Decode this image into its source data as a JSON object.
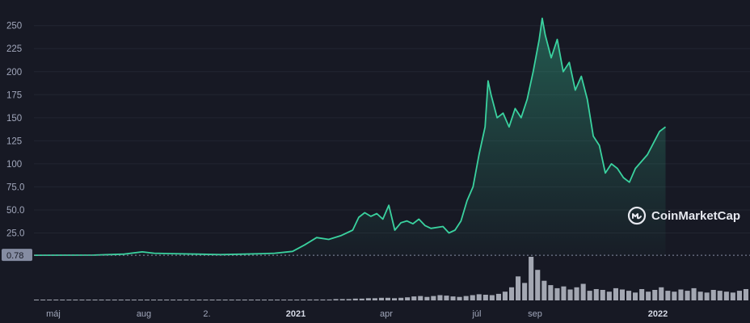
{
  "chart_data": {
    "type": "area",
    "yticks": [
      "250",
      "225",
      "200",
      "175",
      "150",
      "125",
      "100",
      "75.0",
      "50.0",
      "25.0"
    ],
    "ytick_values": [
      250,
      225,
      200,
      175,
      150,
      125,
      100,
      75,
      50,
      25
    ],
    "ylim": [
      0,
      262
    ],
    "baseline_label": "0.78",
    "baseline_value": 0.78,
    "xlabels": [
      {
        "text": "máj",
        "bold": false
      },
      {
        "text": "aug",
        "bold": false
      },
      {
        "text": "2.",
        "bold": false
      },
      {
        "text": "2021",
        "bold": true
      },
      {
        "text": "apr",
        "bold": false
      },
      {
        "text": "júl",
        "bold": false
      },
      {
        "text": "sep",
        "bold": false
      },
      {
        "text": "2022",
        "bold": true
      }
    ],
    "series": [
      {
        "values": [
          [
            0.0,
            0.8
          ],
          [
            0.05,
            0.9
          ],
          [
            0.1,
            1.0
          ],
          [
            0.15,
            2.0
          ],
          [
            0.18,
            4.5
          ],
          [
            0.2,
            3.0
          ],
          [
            0.23,
            2.5
          ],
          [
            0.27,
            2.0
          ],
          [
            0.31,
            1.5
          ],
          [
            0.35,
            2.0
          ],
          [
            0.38,
            2.5
          ],
          [
            0.4,
            3.0
          ],
          [
            0.43,
            5.0
          ],
          [
            0.45,
            12
          ],
          [
            0.47,
            20
          ],
          [
            0.49,
            18
          ],
          [
            0.51,
            22
          ],
          [
            0.53,
            28
          ],
          [
            0.54,
            42
          ],
          [
            0.55,
            47
          ],
          [
            0.56,
            43
          ],
          [
            0.57,
            46
          ],
          [
            0.58,
            40
          ],
          [
            0.59,
            55
          ],
          [
            0.6,
            28
          ],
          [
            0.61,
            36
          ],
          [
            0.62,
            38
          ],
          [
            0.63,
            35
          ],
          [
            0.64,
            40
          ],
          [
            0.65,
            33
          ],
          [
            0.66,
            30
          ],
          [
            0.68,
            32
          ],
          [
            0.69,
            25
          ],
          [
            0.7,
            28
          ],
          [
            0.71,
            38
          ],
          [
            0.72,
            60
          ],
          [
            0.73,
            75
          ],
          [
            0.74,
            110
          ],
          [
            0.75,
            140
          ],
          [
            0.755,
            190
          ],
          [
            0.76,
            175
          ],
          [
            0.77,
            150
          ],
          [
            0.78,
            155
          ],
          [
            0.79,
            140
          ],
          [
            0.8,
            160
          ],
          [
            0.81,
            150
          ],
          [
            0.82,
            170
          ],
          [
            0.83,
            200
          ],
          [
            0.84,
            235
          ],
          [
            0.845,
            258
          ],
          [
            0.85,
            240
          ],
          [
            0.86,
            215
          ],
          [
            0.87,
            235
          ],
          [
            0.88,
            200
          ],
          [
            0.89,
            210
          ],
          [
            0.9,
            180
          ],
          [
            0.91,
            195
          ],
          [
            0.92,
            170
          ],
          [
            0.93,
            130
          ],
          [
            0.94,
            120
          ],
          [
            0.95,
            90
          ],
          [
            0.96,
            100
          ],
          [
            0.97,
            95
          ],
          [
            0.98,
            85
          ],
          [
            0.99,
            80
          ],
          [
            1.0,
            95
          ],
          [
            1.02,
            110
          ],
          [
            1.04,
            135
          ],
          [
            1.05,
            140
          ]
        ]
      }
    ],
    "volume_values": [
      0.01,
      0.01,
      0.01,
      0.01,
      0.01,
      0.01,
      0.01,
      0.01,
      0.01,
      0.01,
      0.01,
      0.01,
      0.01,
      0.01,
      0.01,
      0.01,
      0.01,
      0.01,
      0.01,
      0.01,
      0.01,
      0.01,
      0.01,
      0.01,
      0.01,
      0.01,
      0.01,
      0.01,
      0.01,
      0.01,
      0.01,
      0.01,
      0.01,
      0.01,
      0.01,
      0.01,
      0.01,
      0.01,
      0.01,
      0.01,
      0.01,
      0.02,
      0.02,
      0.02,
      0.02,
      0.02,
      0.03,
      0.03,
      0.03,
      0.04,
      0.04,
      0.05,
      0.05,
      0.06,
      0.06,
      0.05,
      0.06,
      0.07,
      0.09,
      0.1,
      0.08,
      0.1,
      0.12,
      0.11,
      0.09,
      0.08,
      0.1,
      0.12,
      0.14,
      0.13,
      0.12,
      0.15,
      0.2,
      0.3,
      0.55,
      0.4,
      1.0,
      0.7,
      0.45,
      0.35,
      0.28,
      0.32,
      0.25,
      0.3,
      0.38,
      0.22,
      0.26,
      0.24,
      0.2,
      0.28,
      0.25,
      0.22,
      0.18,
      0.26,
      0.2,
      0.24,
      0.3,
      0.22,
      0.2,
      0.25,
      0.22,
      0.28,
      0.2,
      0.18,
      0.24,
      0.22,
      0.2,
      0.18,
      0.22,
      0.26
    ],
    "grid": true,
    "line_color": "#3ad29f",
    "background": "#171924"
  },
  "watermark": {
    "text": "CoinMarketCap",
    "icon": "coinmarketcap-logo"
  }
}
